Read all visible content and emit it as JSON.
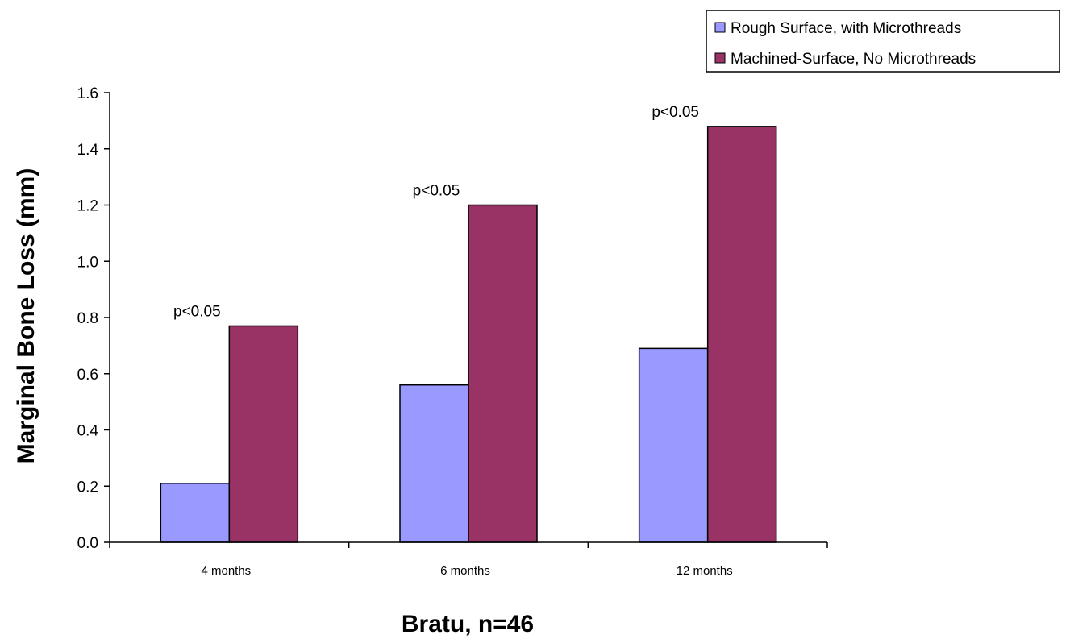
{
  "chart_data": {
    "type": "bar",
    "categories": [
      "4 months",
      "6 months",
      "12 months"
    ],
    "series": [
      {
        "name": "Rough Surface, with Microthreads",
        "values": [
          0.21,
          0.56,
          0.69
        ],
        "color": "#9999ff"
      },
      {
        "name": "Machined-Surface, No Microthreads",
        "values": [
          0.77,
          1.2,
          1.48
        ],
        "color": "#993366"
      }
    ],
    "annotations": [
      "p<0.05",
      "p<0.05",
      "p<0.05"
    ],
    "ylabel": "Marginal Bone Loss (mm)",
    "xlabel": "Bratu, n=46",
    "ylim": [
      0,
      1.6
    ],
    "yticks": [
      "0.0",
      "0.2",
      "0.4",
      "0.6",
      "0.8",
      "1.0",
      "1.2",
      "1.4",
      "1.6"
    ],
    "grid": false,
    "legend_position": "top-right"
  }
}
